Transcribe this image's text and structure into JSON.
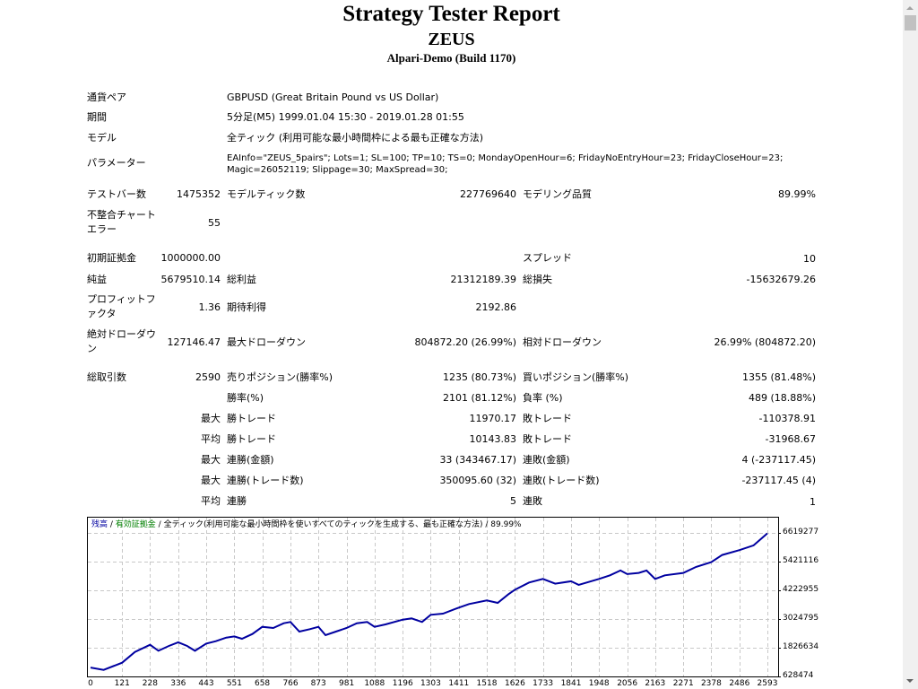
{
  "header": {
    "title": "Strategy Tester Report",
    "ea_name": "ZEUS",
    "server": "Alpari-Demo (Build 1170)"
  },
  "info": {
    "symbol_label": "通貨ペア",
    "symbol_value": "GBPUSD (Great Britain Pound vs US Dollar)",
    "period_label": "期間",
    "period_value": "5分足(M5) 1999.01.04 15:30 - 2019.01.28 01:55",
    "model_label": "モデル",
    "model_value": "全ティック (利用可能な最小時間枠による最も正確な方法)",
    "params_label": "パラメーター",
    "params_line1": "EAInfo=\"ZEUS_5pairs\"; Lots=1; SL=100; TP=10; TS=0; MondayOpenHour=6; FridayNoEntryHour=23; FridayCloseHour=23;",
    "params_line2": "Magic=26052119; Slippage=30; MaxSpread=30;"
  },
  "bars": {
    "bars_label": "テストバー数",
    "bars_value": "1475352",
    "ticks_label": "モデルティック数",
    "ticks_value": "227769640",
    "quality_label": "モデリング品質",
    "quality_value": "89.99%",
    "mismatch_label_1": "不整合チャート",
    "mismatch_label_2": "エラー",
    "mismatch_value": "55"
  },
  "results": {
    "deposit_label": "初期証拠金",
    "deposit_value": "1000000.00",
    "spread_label": "スプレッド",
    "spread_value": "10",
    "net_label": "純益",
    "net_value": "5679510.14",
    "gross_profit_label": "総利益",
    "gross_profit_value": "21312189.39",
    "gross_loss_label": "総損失",
    "gross_loss_value": "-15632679.26",
    "pf_label_1": "プロフィットフ",
    "pf_label_2": "ァクタ",
    "pf_value": "1.36",
    "expected_label": "期待利得",
    "expected_value": "2192.86",
    "abs_dd_label_1": "絶対ドローダウ",
    "abs_dd_label_2": "ン",
    "abs_dd_value": "127146.47",
    "max_dd_label": "最大ドローダウン",
    "max_dd_value": "804872.20 (26.99%)",
    "rel_dd_label": "相対ドローダウン",
    "rel_dd_value": "26.99% (804872.20)"
  },
  "trades": {
    "total_label": "総取引数",
    "total_value": "2590",
    "short_label": "売りポジション(勝率%)",
    "short_value": "1235 (80.73%)",
    "long_label": "買いポジション(勝率%)",
    "long_value": "1355 (81.48%)",
    "win_label": "勝率(%)",
    "win_value": "2101 (81.12%)",
    "loss_label": "負率 (%)",
    "loss_value": "489 (18.88%)",
    "max_prefix": "最大",
    "avg_prefix": "平均",
    "largest_win_label": "勝トレード",
    "largest_win_value": "11970.17",
    "largest_loss_label": "敗トレード",
    "largest_loss_value": "-110378.91",
    "avg_win_label": "勝トレード",
    "avg_win_value": "10143.83",
    "avg_loss_label": "敗トレード",
    "avg_loss_value": "-31968.67",
    "max_consec_win_label": "連勝(金額)",
    "max_consec_win_value": "33 (343467.17)",
    "max_consec_loss_label": "連敗(金額)",
    "max_consec_loss_value": "4 (-237117.45)",
    "max_consec_profit_label": "連勝(トレード数)",
    "max_consec_profit_value": "350095.60 (32)",
    "max_consec_lossamt_label": "連敗(トレード数)",
    "max_consec_lossamt_value": "-237117.45 (4)",
    "avg_consec_win_label": "連勝",
    "avg_consec_win_value": "5",
    "avg_consec_loss_label": "連敗",
    "avg_consec_loss_value": "1"
  },
  "chart_legend": {
    "balance": "残高",
    "sep1": " / ",
    "equity": "有効証拠金",
    "sep2": " / ",
    "model": "全ティック(利用可能な最小時間枠を使いすべてのティックを生成する、最も正確な方法)",
    "sep3": " / ",
    "quality": "89.99%"
  },
  "colors": {
    "balance_line": "#0000a0",
    "equity_label": "#008000",
    "balance_label": "#0000a0",
    "grid": "#c8c8c8"
  },
  "chart_data": {
    "type": "line",
    "title": "残高 / 有効証拠金 / 全ティック(利用可能な最小時間枠を使いすべてのティックを生成する、最も正確な方法) / 89.99%",
    "xlabel": "",
    "ylabel": "",
    "x_ticks": [
      0,
      121,
      228,
      336,
      443,
      551,
      658,
      766,
      873,
      981,
      1088,
      1196,
      1303,
      1411,
      1518,
      1626,
      1733,
      1841,
      1948,
      2056,
      2163,
      2271,
      2378,
      2486,
      2593
    ],
    "y_ticks": [
      628474,
      1826634,
      3024795,
      4222955,
      5421116,
      6619277
    ],
    "xlim": [
      0,
      2600
    ],
    "ylim": [
      628474,
      6870000
    ],
    "grid": true,
    "legend_position": "top-left",
    "series": [
      {
        "name": "残高",
        "x": [
          0,
          50,
          121,
          170,
          228,
          260,
          300,
          336,
          370,
          400,
          443,
          480,
          520,
          551,
          580,
          620,
          658,
          700,
          740,
          766,
          800,
          840,
          873,
          900,
          940,
          981,
          1020,
          1060,
          1088,
          1130,
          1196,
          1230,
          1270,
          1303,
          1350,
          1411,
          1450,
          1518,
          1560,
          1600,
          1626,
          1680,
          1733,
          1780,
          1841,
          1870,
          1948,
          1990,
          2030,
          2056,
          2100,
          2130,
          2163,
          2200,
          2271,
          2320,
          2378,
          2420,
          2486,
          2540,
          2593
        ],
        "values": [
          1000000,
          900000,
          1200000,
          1650000,
          1950000,
          1700000,
          1900000,
          2050000,
          1900000,
          1700000,
          2000000,
          2100000,
          2250000,
          2300000,
          2200000,
          2400000,
          2700000,
          2650000,
          2850000,
          2900000,
          2500000,
          2600000,
          2700000,
          2350000,
          2500000,
          2650000,
          2850000,
          2900000,
          2700000,
          2800000,
          3000000,
          3050000,
          2900000,
          3200000,
          3250000,
          3500000,
          3650000,
          3800000,
          3700000,
          4050000,
          4250000,
          4550000,
          4700000,
          4500000,
          4600000,
          4450000,
          4700000,
          4850000,
          5050000,
          4900000,
          4950000,
          5050000,
          4700000,
          4850000,
          4950000,
          5200000,
          5400000,
          5700000,
          5900000,
          6100000,
          6600000
        ]
      }
    ]
  }
}
